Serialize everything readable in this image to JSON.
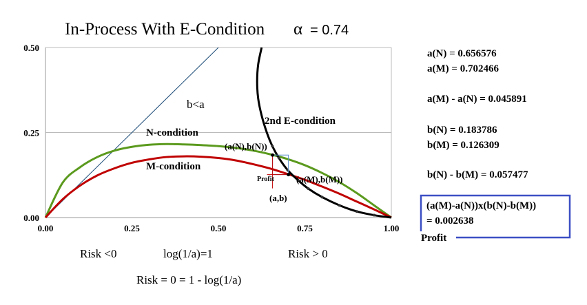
{
  "chart_data": {
    "type": "line",
    "title": "In-Process With E-Condition",
    "alpha_symbol": "α",
    "alpha_value": "= 0.74",
    "xlim": [
      0,
      1
    ],
    "ylim": [
      0,
      0.5
    ],
    "x_ticks": [
      "0.00",
      "0.25",
      "0.50",
      "0.75",
      "1.00"
    ],
    "y_ticks": [
      "0.00",
      "0.25",
      "0.50"
    ],
    "grid": "horizontal",
    "series": [
      {
        "name": "N-condition",
        "color": "#5b9a1e",
        "x": [
          0,
          0.05,
          0.1,
          0.15,
          0.2,
          0.25,
          0.3,
          0.35,
          0.4,
          0.45,
          0.5,
          0.55,
          0.6,
          0.65,
          0.7,
          0.75,
          0.8,
          0.85,
          0.9,
          0.95,
          1.0
        ],
        "y": [
          0,
          0.103,
          0.148,
          0.178,
          0.197,
          0.208,
          0.214,
          0.216,
          0.215,
          0.213,
          0.21,
          0.205,
          0.197,
          0.186,
          0.172,
          0.154,
          0.131,
          0.104,
          0.072,
          0.036,
          0
        ]
      },
      {
        "name": "M-condition",
        "color": "#c00000",
        "x": [
          0,
          0.05,
          0.1,
          0.15,
          0.2,
          0.25,
          0.3,
          0.35,
          0.4,
          0.45,
          0.5,
          0.55,
          0.6,
          0.65,
          0.7,
          0.75,
          0.8,
          0.85,
          0.9,
          0.95,
          1.0
        ],
        "y": [
          0,
          0.054,
          0.094,
          0.124,
          0.145,
          0.161,
          0.171,
          0.178,
          0.18,
          0.179,
          0.175,
          0.168,
          0.157,
          0.144,
          0.128,
          0.111,
          0.091,
          0.07,
          0.047,
          0.024,
          0
        ]
      },
      {
        "name": "b<a",
        "color": "#1f4e79",
        "x": [
          0,
          0.5
        ],
        "y": [
          0,
          0.5
        ]
      },
      {
        "name": "2nd E-condition",
        "color": "#000000",
        "x": [
          0.625,
          0.615,
          0.612,
          0.615,
          0.625,
          0.64,
          0.656,
          0.675,
          0.7,
          0.73,
          0.76,
          0.8,
          0.85,
          0.9,
          0.95,
          1.0
        ],
        "y": [
          0.5,
          0.45,
          0.4,
          0.35,
          0.3,
          0.25,
          0.21,
          0.175,
          0.14,
          0.11,
          0.085,
          0.06,
          0.036,
          0.018,
          0.007,
          0
        ]
      }
    ],
    "annotations": {
      "b_lt_a": "b<a",
      "n_condition": "N-condition",
      "m_condition": "M-condition",
      "second_e": "2nd E-condition",
      "point_n": "(a(N),b(N))",
      "point_m": "(a(M),b(M))",
      "profit": "Profit",
      "point_ab": "(a,b)"
    },
    "points": {
      "N": {
        "x": 0.656576,
        "y": 0.183786
      },
      "M": {
        "x": 0.702466,
        "y": 0.126309
      }
    },
    "bottom_labels": {
      "risk_neg": "Risk <0",
      "log_eq": "log(1/a)=1",
      "risk_pos": "Risk > 0",
      "risk_zero": "Risk = 0 = 1 - log(1/a)"
    },
    "side_panel": {
      "aN": "a(N)  = 0.656576",
      "aM": "a(M)  = 0.702466",
      "diff_a": "a(M) - a(N) = 0.045891",
      "bN": "b(N)  = 0.183786",
      "bM": "b(M) = 0.126309",
      "diff_b": "b(N) - b(M) = 0.057477",
      "formula": "(a(M)-a(N))x(b(N)-b(M))",
      "result": "= 0.002638",
      "profit_label": "Profit"
    }
  },
  "colors": {
    "n_curve": "#5b9a1e",
    "m_curve": "#c00000",
    "diag": "#1f4e79",
    "e_curve": "#000000",
    "box": "#3b4fc4"
  }
}
